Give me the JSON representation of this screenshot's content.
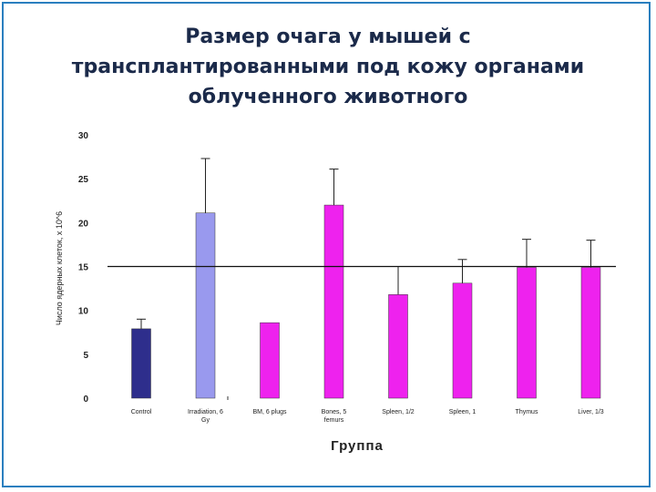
{
  "title_lines": [
    "Размер очага у мышей с",
    "трансплантированными под кожу органами",
    "облученного животного"
  ],
  "colors": {
    "frame": "#2a7fbf",
    "title": "#1b2a4a"
  },
  "chart_data": {
    "type": "bar",
    "categories": [
      [
        "Control"
      ],
      [
        "Irradiation, 6",
        "Gy"
      ],
      [
        "BM, 6 plugs"
      ],
      [
        "Bones, 5",
        "femurs"
      ],
      [
        "Spleen, 1/2"
      ],
      [
        "Spleen, 1"
      ],
      [
        "Thymus"
      ],
      [
        "Liver, 1/3"
      ]
    ],
    "values": [
      7.9,
      21.1,
      8.6,
      22.0,
      11.8,
      13.1,
      14.9,
      14.9
    ],
    "error_upper": [
      9.0,
      27.3,
      null,
      26.1,
      15.0,
      15.8,
      18.1,
      18.0
    ],
    "colors": [
      "#2e2e8c",
      "#9999ee",
      "#ee22ee",
      "#ee22ee",
      "#ee22ee",
      "#ee22ee",
      "#ee22ee",
      "#ee22ee"
    ],
    "reference_line": 15,
    "ylim": [
      0,
      30
    ],
    "yticks": [
      0,
      5,
      10,
      15,
      20,
      25,
      30
    ],
    "xlabel": "Группа",
    "ylabel": "Число ядерных клеток, х 10^6",
    "grid": false
  }
}
